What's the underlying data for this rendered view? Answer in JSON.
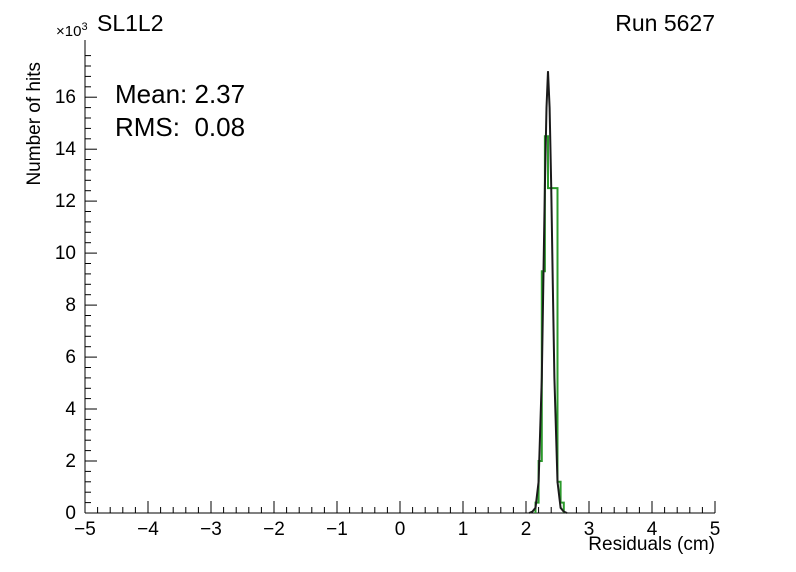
{
  "chart_data": {
    "type": "line",
    "title": "SL1L2",
    "corner_label": "Run 5627",
    "xlabel": "Residuals (cm)",
    "ylabel": "Number of hits",
    "y_axis_multiplier_base": "×10",
    "y_axis_multiplier_exp": "3",
    "y_units_note": "counts in thousands (×10³)",
    "xlim": [
      -5,
      5
    ],
    "ylim": [
      0,
      18.2
    ],
    "grid": false,
    "legend": "none",
    "x_ticks": [
      {
        "value": -5,
        "label": "−5"
      },
      {
        "value": -4,
        "label": "−4"
      },
      {
        "value": -3,
        "label": "−3"
      },
      {
        "value": -2,
        "label": "−2"
      },
      {
        "value": -1,
        "label": "−1"
      },
      {
        "value": 0,
        "label": "0"
      },
      {
        "value": 1,
        "label": "1"
      },
      {
        "value": 2,
        "label": "2"
      },
      {
        "value": 3,
        "label": "3"
      },
      {
        "value": 4,
        "label": "4"
      },
      {
        "value": 5,
        "label": "5"
      }
    ],
    "y_ticks": [
      {
        "value": 0,
        "label": "0"
      },
      {
        "value": 2,
        "label": "2"
      },
      {
        "value": 4,
        "label": "4"
      },
      {
        "value": 6,
        "label": "6"
      },
      {
        "value": 8,
        "label": "8"
      },
      {
        "value": 10,
        "label": "10"
      },
      {
        "value": 12,
        "label": "12"
      },
      {
        "value": 14,
        "label": "14"
      },
      {
        "value": 16,
        "label": "16"
      }
    ],
    "x_minor_step": 0.2,
    "y_minor_step": 0.4,
    "annotations": [
      {
        "text": "Mean: 2.37"
      },
      {
        "text": "RMS:  0.08"
      }
    ],
    "series": [
      {
        "name": "residuals-histogram-green",
        "color": "#2b9a2b",
        "style": "step-histogram",
        "bin_width": 0.05,
        "bins": [
          [
            2.15,
            0.4
          ],
          [
            2.2,
            2.0
          ],
          [
            2.25,
            9.3
          ],
          [
            2.3,
            14.5
          ],
          [
            2.35,
            12.5
          ],
          [
            2.4,
            12.5
          ],
          [
            2.45,
            12.5
          ],
          [
            2.5,
            1.2
          ],
          [
            2.55,
            0.4
          ]
        ]
      },
      {
        "name": "residuals-peak-black",
        "color": "#1a1a1a",
        "style": "curve",
        "points": [
          [
            2.05,
            0.0
          ],
          [
            2.1,
            0.05
          ],
          [
            2.15,
            0.2
          ],
          [
            2.2,
            1.2
          ],
          [
            2.25,
            5.2
          ],
          [
            2.275,
            8.8
          ],
          [
            2.3,
            12.6
          ],
          [
            2.325,
            15.6
          ],
          [
            2.35,
            17.0
          ],
          [
            2.375,
            15.6
          ],
          [
            2.4,
            12.6
          ],
          [
            2.425,
            8.8
          ],
          [
            2.45,
            5.2
          ],
          [
            2.5,
            1.2
          ],
          [
            2.55,
            0.2
          ],
          [
            2.6,
            0.05
          ],
          [
            2.65,
            0.0
          ]
        ]
      }
    ]
  }
}
